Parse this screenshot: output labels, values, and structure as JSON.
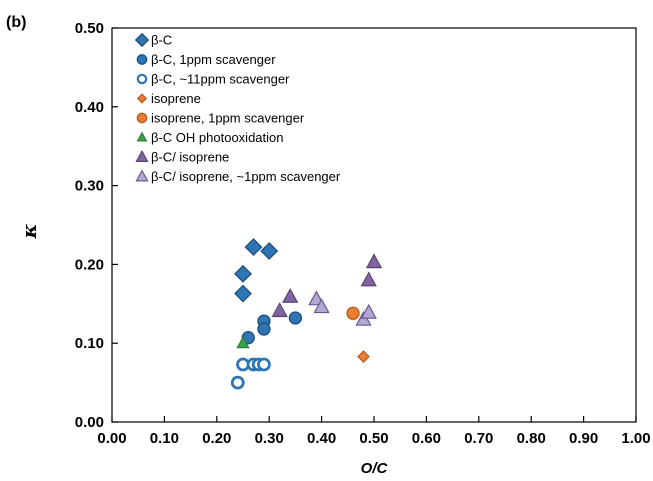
{
  "panel_label": "(b)",
  "chart_data": {
    "type": "scatter",
    "xlabel": "O/C",
    "ylabel": "κ",
    "xlim": [
      0,
      1.0
    ],
    "ylim": [
      0,
      0.5
    ],
    "x_ticks": [
      "0.00",
      "0.10",
      "0.20",
      "0.30",
      "0.40",
      "0.50",
      "0.60",
      "0.70",
      "0.80",
      "0.90",
      "1.00"
    ],
    "y_ticks": [
      "0.00",
      "0.10",
      "0.20",
      "0.30",
      "0.40",
      "0.50"
    ],
    "legend_position": "top-left",
    "series": [
      {
        "name": "β-C",
        "marker": "diamond",
        "color": "#2e75b6",
        "stroke": "#1f4e79",
        "fill": "solid",
        "points": [
          [
            0.27,
            0.222
          ],
          [
            0.3,
            0.217
          ],
          [
            0.25,
            0.188
          ],
          [
            0.25,
            0.163
          ]
        ]
      },
      {
        "name": "β-C, 1ppm scavenger",
        "marker": "circle",
        "color": "#2e75b6",
        "stroke": "#1f4e79",
        "fill": "solid",
        "points": [
          [
            0.26,
            0.107
          ],
          [
            0.29,
            0.128
          ],
          [
            0.29,
            0.118
          ],
          [
            0.35,
            0.132
          ]
        ]
      },
      {
        "name": "β-C, ~11ppm scavenger",
        "marker": "circle",
        "color": "#2e75b6",
        "stroke": "#2e75b6",
        "fill": "open",
        "points": [
          [
            0.24,
            0.05
          ],
          [
            0.25,
            0.073
          ],
          [
            0.27,
            0.073
          ],
          [
            0.28,
            0.073
          ],
          [
            0.29,
            0.073
          ]
        ]
      },
      {
        "name": "isoprene",
        "marker": "diamond-small",
        "color": "#ed7d31",
        "stroke": "#b35a1f",
        "fill": "solid",
        "points": [
          [
            0.48,
            0.083
          ]
        ]
      },
      {
        "name": "isoprene, 1ppm scavenger",
        "marker": "circle",
        "color": "#ed7d31",
        "stroke": "#b35a1f",
        "fill": "solid",
        "points": [
          [
            0.46,
            0.138
          ]
        ]
      },
      {
        "name": "β-C OH photooxidation",
        "marker": "triangle-small",
        "color": "#38a44a",
        "stroke": "#2a7a37",
        "fill": "solid",
        "points": [
          [
            0.25,
            0.1
          ]
        ]
      },
      {
        "name": "β-C/ isoprene",
        "marker": "triangle",
        "color": "#8064a2",
        "stroke": "#5a4578",
        "fill": "solid",
        "points": [
          [
            0.32,
            0.141
          ],
          [
            0.34,
            0.159
          ],
          [
            0.49,
            0.18
          ],
          [
            0.5,
            0.203
          ]
        ]
      },
      {
        "name": "β-C/ isoprene, ~1ppm scavenger",
        "marker": "triangle",
        "color": "#b4a7d6",
        "stroke": "#6a5a8e",
        "fill": "solid",
        "points": [
          [
            0.39,
            0.156
          ],
          [
            0.4,
            0.146
          ],
          [
            0.48,
            0.13
          ],
          [
            0.49,
            0.139
          ]
        ]
      }
    ]
  }
}
